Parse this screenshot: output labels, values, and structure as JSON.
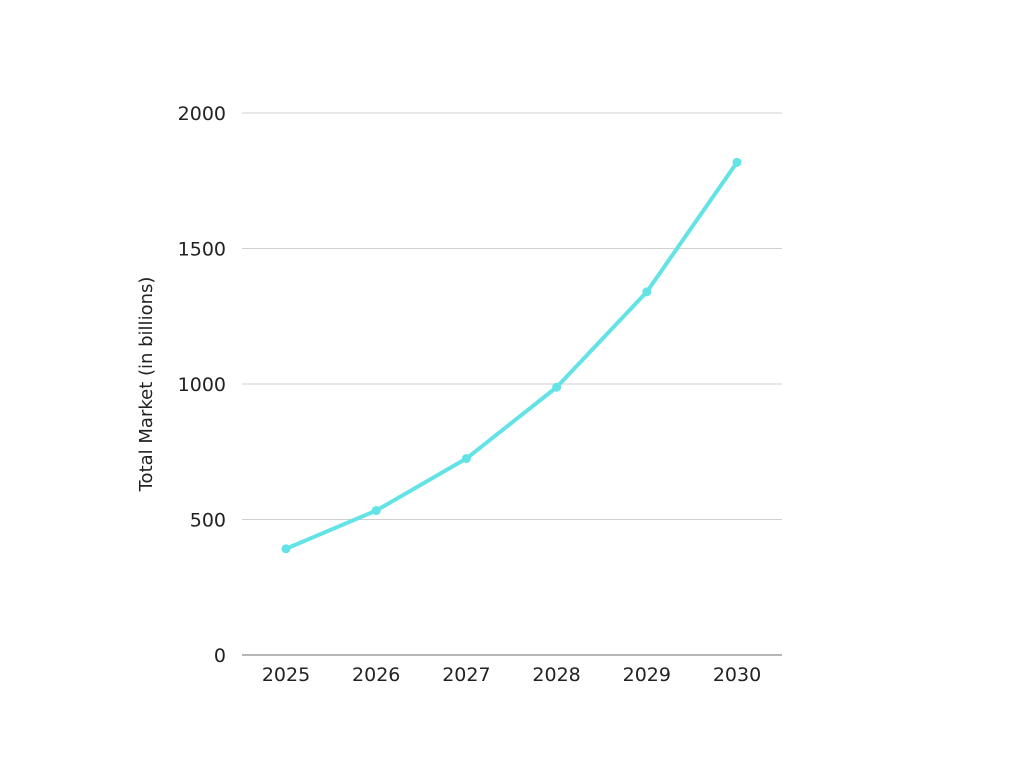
{
  "chart_data": {
    "type": "line",
    "title": "",
    "xlabel": "",
    "ylabel": "Total Market (in billions)",
    "x": [
      "2025",
      "2026",
      "2027",
      "2028",
      "2029",
      "2030"
    ],
    "series": [
      {
        "values": [
          392,
          533,
          725,
          988,
          1340,
          1818
        ]
      }
    ],
    "ylim": [
      0,
      2000
    ],
    "yticks": [
      "0",
      "500",
      "1000",
      "1500",
      "2000"
    ],
    "grid": true,
    "legend": "none",
    "colors": {
      "line": "#63e3e6",
      "grid": "#cfcfcf",
      "axis": "#8a8a8a",
      "text": "#222222"
    }
  }
}
